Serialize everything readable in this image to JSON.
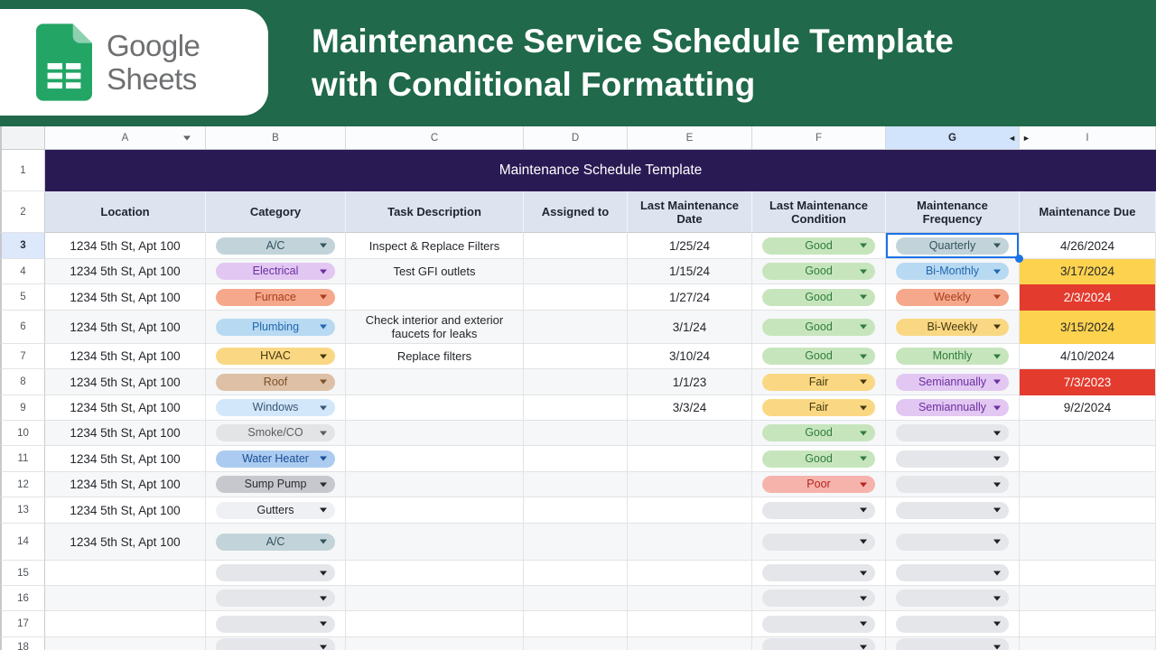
{
  "banner": {
    "logo_line1": "Google",
    "logo_line2": "Sheets",
    "title_line1": "Maintenance Service Schedule Template",
    "title_line2": "with Conditional Formatting"
  },
  "colors": {
    "banner_green": "#20694a",
    "title_bar_purple": "#2a1a54",
    "header_bg": "#dee4ef",
    "selected_blue": "#1a73e8",
    "selected_col_header_bg": "#d2e3fc",
    "band_bg": "#f6f7f8",
    "due_warn_bg": "#fcd24f",
    "due_overdue_bg": "#e33b2e",
    "pill_palettes": {
      "grayteal": {
        "bg": "#c2d4d9",
        "fg": "#33535e"
      },
      "purple": {
        "bg": "#e2c7f2",
        "fg": "#6b2fa0"
      },
      "salmon": {
        "bg": "#f5a88b",
        "fg": "#a63d1e"
      },
      "blue": {
        "bg": "#b8d9f2",
        "fg": "#2068ae"
      },
      "gold": {
        "bg": "#fad883",
        "fg": "#46380f"
      },
      "tan": {
        "bg": "#dec0a6",
        "fg": "#7c4f27"
      },
      "lightblue": {
        "bg": "#d3e7fa",
        "fg": "#3a5872"
      },
      "gray": {
        "bg": "#e3e4e6",
        "fg": "#5a5c61"
      },
      "medblue": {
        "bg": "#abccf0",
        "fg": "#1b4e96"
      },
      "darkgray": {
        "bg": "#c6c8ce",
        "fg": "#2b2d31"
      },
      "offwhite": {
        "bg": "#eef0f3",
        "fg": "#1f2125"
      },
      "green": {
        "bg": "#c7e5bd",
        "fg": "#2f7d3b"
      },
      "red": {
        "bg": "#f6b3ac",
        "fg": "#b3261c"
      },
      "empty": {
        "bg": "#e4e6ea",
        "fg": "#202124"
      }
    }
  },
  "sheet": {
    "row_header_width": 50,
    "columns": [
      {
        "label": "A",
        "w": 178,
        "has_filter": true
      },
      {
        "label": "B",
        "w": 155
      },
      {
        "label": "C",
        "w": 197
      },
      {
        "label": "D",
        "w": 115
      },
      {
        "label": "E",
        "w": 138
      },
      {
        "label": "F",
        "w": 148
      },
      {
        "label": "G",
        "w": 148,
        "selected": true,
        "hidden_left": "◄"
      },
      {
        "label": "I",
        "w": 151,
        "hidden_right": "►"
      }
    ],
    "rows": [
      {
        "n": "1",
        "h": 46,
        "type": "title",
        "text": "Maintenance Schedule Template"
      },
      {
        "n": "2",
        "h": 46,
        "type": "header",
        "cells": [
          "Location",
          "Category",
          "Task Description",
          "Assigned to",
          "Last Maintenance\nDate",
          "Last Maintenance\nCondition",
          "Maintenance\nFrequency",
          "Maintenance Due"
        ]
      },
      {
        "n": "3",
        "h": 29,
        "selected": true,
        "location": "1234 5th St, Apt 100",
        "category": {
          "label": "A/C",
          "c": "grayteal"
        },
        "task": "Inspect & Replace Filters",
        "assigned": "",
        "date": "1/25/24",
        "condition": {
          "label": "Good",
          "c": "green"
        },
        "frequency": {
          "label": "Quarterly",
          "c": "grayteal",
          "selected": true
        },
        "due": {
          "text": "4/26/2024",
          "s": "normal"
        }
      },
      {
        "n": "4",
        "h": 28,
        "location": "1234 5th St, Apt 100",
        "category": {
          "label": "Electrical",
          "c": "purple"
        },
        "task": "Test GFI outlets",
        "assigned": "",
        "date": "1/15/24",
        "condition": {
          "label": "Good",
          "c": "green"
        },
        "frequency": {
          "label": "Bi-Monthly",
          "c": "blue"
        },
        "due": {
          "text": "3/17/2024",
          "s": "warn"
        }
      },
      {
        "n": "5",
        "h": 29,
        "location": "1234 5th St, Apt 100",
        "category": {
          "label": "Furnace",
          "c": "salmon"
        },
        "task": "",
        "assigned": "",
        "date": "1/27/24",
        "condition": {
          "label": "Good",
          "c": "green"
        },
        "frequency": {
          "label": "Weekly",
          "c": "salmon"
        },
        "due": {
          "text": "2/3/2024",
          "s": "overdue"
        }
      },
      {
        "n": "6",
        "h": 37,
        "location": "1234 5th St, Apt 100",
        "category": {
          "label": "Plumbing",
          "c": "blue"
        },
        "task": "Check interior and exterior faucets for leaks",
        "assigned": "",
        "date": "3/1/24",
        "condition": {
          "label": "Good",
          "c": "green"
        },
        "frequency": {
          "label": "Bi-Weekly",
          "c": "gold"
        },
        "due": {
          "text": "3/15/2024",
          "s": "warn"
        }
      },
      {
        "n": "7",
        "h": 28,
        "location": "1234 5th St, Apt 100",
        "category": {
          "label": "HVAC",
          "c": "gold"
        },
        "task": "Replace filters",
        "assigned": "",
        "date": "3/10/24",
        "condition": {
          "label": "Good",
          "c": "green"
        },
        "frequency": {
          "label": "Monthly",
          "c": "green"
        },
        "due": {
          "text": "4/10/2024",
          "s": "normal"
        }
      },
      {
        "n": "8",
        "h": 29,
        "location": "1234 5th St, Apt 100",
        "category": {
          "label": "Roof",
          "c": "tan"
        },
        "task": "",
        "assigned": "",
        "date": "1/1/23",
        "condition": {
          "label": "Fair",
          "c": "gold"
        },
        "frequency": {
          "label": "Semiannually",
          "c": "purple"
        },
        "due": {
          "text": "7/3/2023",
          "s": "overdue"
        }
      },
      {
        "n": "9",
        "h": 28,
        "location": "1234 5th St, Apt 100",
        "category": {
          "label": "Windows",
          "c": "lightblue"
        },
        "task": "",
        "assigned": "",
        "date": "3/3/24",
        "condition": {
          "label": "Fair",
          "c": "gold"
        },
        "frequency": {
          "label": "Semiannually",
          "c": "purple"
        },
        "due": {
          "text": "9/2/2024",
          "s": "normal"
        }
      },
      {
        "n": "10",
        "h": 28,
        "location": "1234 5th St, Apt 100",
        "category": {
          "label": "Smoke/CO",
          "c": "gray"
        },
        "task": "",
        "assigned": "",
        "date": "",
        "condition": {
          "label": "Good",
          "c": "green"
        },
        "frequency": {
          "label": "",
          "c": "empty"
        },
        "due": {
          "text": "",
          "s": "none"
        }
      },
      {
        "n": "11",
        "h": 29,
        "location": "1234 5th St, Apt 100",
        "category": {
          "label": "Water Heater",
          "c": "medblue"
        },
        "task": "",
        "assigned": "",
        "date": "",
        "condition": {
          "label": "Good",
          "c": "green"
        },
        "frequency": {
          "label": "",
          "c": "empty"
        },
        "due": {
          "text": "",
          "s": "none"
        }
      },
      {
        "n": "12",
        "h": 28,
        "location": "1234 5th St, Apt 100",
        "category": {
          "label": "Sump Pump",
          "c": "darkgray"
        },
        "task": "",
        "assigned": "",
        "date": "",
        "condition": {
          "label": "Poor",
          "c": "red"
        },
        "frequency": {
          "label": "",
          "c": "empty"
        },
        "due": {
          "text": "",
          "s": "none"
        }
      },
      {
        "n": "13",
        "h": 29,
        "location": "1234 5th St, Apt 100",
        "category": {
          "label": "Gutters",
          "c": "offwhite"
        },
        "task": "",
        "assigned": "",
        "date": "",
        "condition": {
          "label": "",
          "c": "empty"
        },
        "frequency": {
          "label": "",
          "c": "empty"
        },
        "due": {
          "text": "",
          "s": "none"
        }
      },
      {
        "n": "14",
        "h": 41,
        "location": "1234 5th St, Apt 100",
        "category": {
          "label": "A/C",
          "c": "grayteal"
        },
        "task": "",
        "assigned": "",
        "date": "",
        "condition": {
          "label": "",
          "c": "empty"
        },
        "frequency": {
          "label": "",
          "c": "empty"
        },
        "due": {
          "text": "",
          "s": "none"
        }
      },
      {
        "n": "15",
        "h": 28,
        "location": "",
        "category": {
          "label": "",
          "c": "empty"
        },
        "task": "",
        "assigned": "",
        "date": "",
        "condition": {
          "label": "",
          "c": "empty"
        },
        "frequency": {
          "label": "",
          "c": "empty"
        },
        "due": {
          "text": "",
          "s": "none"
        }
      },
      {
        "n": "16",
        "h": 28,
        "location": "",
        "category": {
          "label": "",
          "c": "empty"
        },
        "task": "",
        "assigned": "",
        "date": "",
        "condition": {
          "label": "",
          "c": "empty"
        },
        "frequency": {
          "label": "",
          "c": "empty"
        },
        "due": {
          "text": "",
          "s": "none"
        }
      },
      {
        "n": "17",
        "h": 29,
        "location": "",
        "category": {
          "label": "",
          "c": "empty"
        },
        "task": "",
        "assigned": "",
        "date": "",
        "condition": {
          "label": "",
          "c": "empty"
        },
        "frequency": {
          "label": "",
          "c": "empty"
        },
        "due": {
          "text": "",
          "s": "none"
        }
      },
      {
        "n": "18",
        "h": 22,
        "location": "",
        "category": {
          "label": "",
          "c": "empty"
        },
        "task": "",
        "assigned": "",
        "date": "",
        "condition": {
          "label": "",
          "c": "empty"
        },
        "frequency": {
          "label": "",
          "c": "empty"
        },
        "due": {
          "text": "",
          "s": "none"
        }
      }
    ]
  }
}
